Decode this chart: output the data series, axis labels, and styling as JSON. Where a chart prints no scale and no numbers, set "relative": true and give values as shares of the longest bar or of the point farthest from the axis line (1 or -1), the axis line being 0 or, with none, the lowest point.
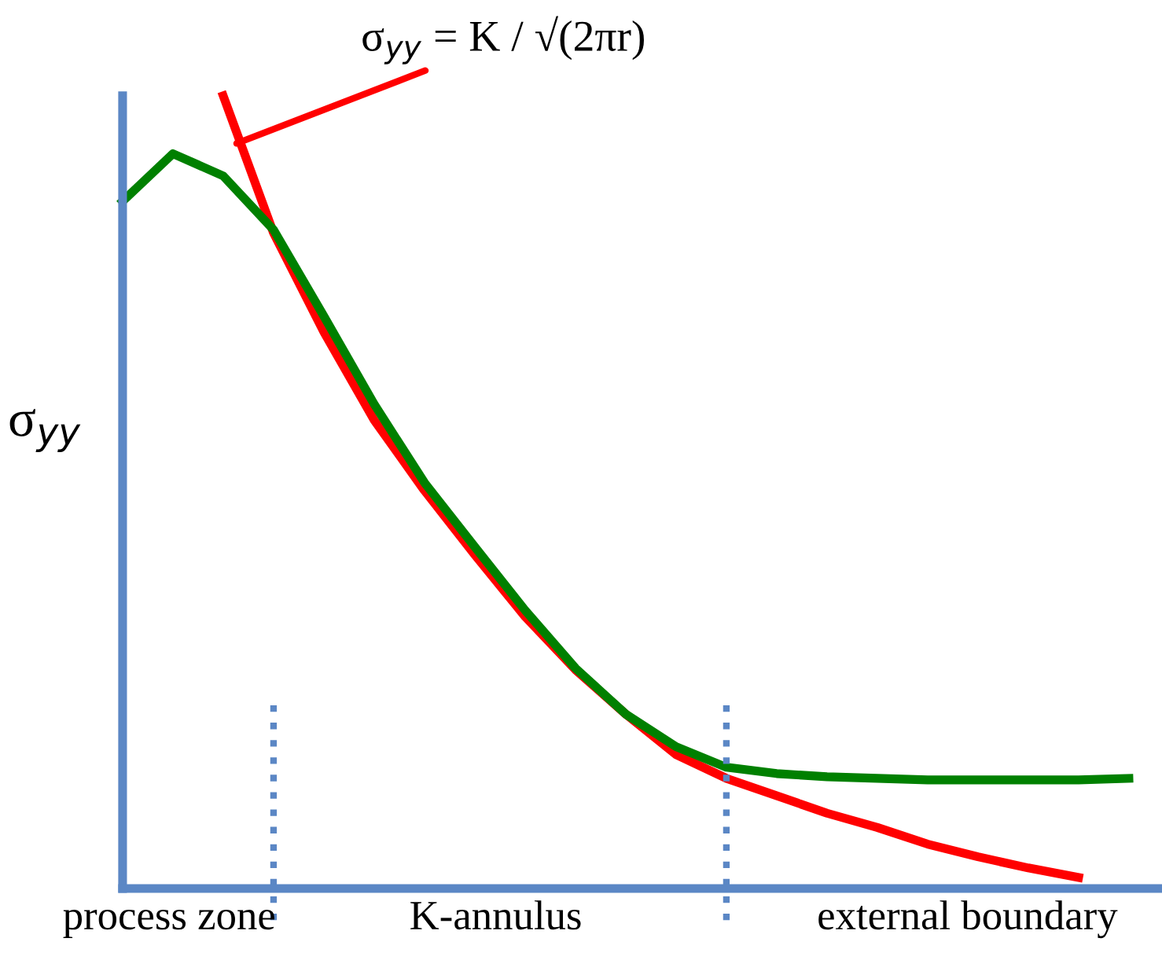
{
  "chart_data": {
    "type": "line",
    "relative": true,
    "ylabel": "σ$_{yy}$",
    "categories": [
      null,
      null,
      null,
      null,
      null,
      null,
      null,
      null,
      null,
      null,
      null,
      null,
      null,
      null,
      null,
      null,
      null,
      null,
      null,
      null,
      null
    ],
    "legend": false,
    "marker": "none",
    "line_style": "solid",
    "series": [
      {
        "color": "#ff0000",
        "values": [
          null,
          null,
          1.0,
          0.827,
          0.702,
          0.591,
          0.502,
          0.421,
          0.343,
          0.276,
          0.22,
          0.169,
          0.139,
          0.117,
          0.095,
          0.077,
          0.056,
          0.04,
          0.026,
          0.014,
          null
        ]
      },
      {
        "color": "#008000",
        "values": [
          0.867,
          0.927,
          0.899,
          0.831,
          0.722,
          0.611,
          0.512,
          0.431,
          0.351,
          0.278,
          0.22,
          0.179,
          0.153,
          0.145,
          0.141,
          0.139,
          0.137,
          0.137,
          0.137,
          0.137,
          0.139
        ]
      }
    ],
    "annotations": [
      "σ$_{yy}$ = K / √(2πr)",
      "process zone",
      "K-annulus",
      "external boundary"
    ]
  }
}
